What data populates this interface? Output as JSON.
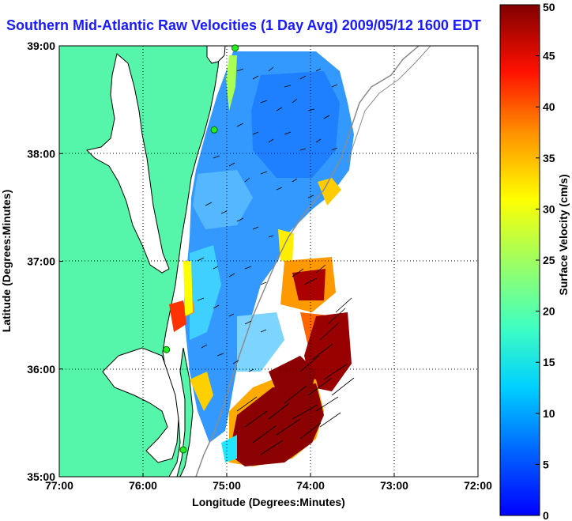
{
  "title": "Southern Mid-Atlantic Raw Velocities (1 Day Avg) 2009/05/12 1600 EDT",
  "map": {
    "xlabel": "Longitude (Degrees:Minutes)",
    "ylabel": "Latitude (Degrees:Minutes)",
    "x_ticks": [
      "77:00",
      "76:00",
      "75:00",
      "74:00",
      "73:00",
      "72:00"
    ],
    "y_ticks": [
      "39:00",
      "38:00",
      "37:00",
      "36:00",
      "35:00"
    ],
    "lon_range": [
      -77,
      -72
    ],
    "lat_range": [
      35,
      39
    ],
    "grid": "dotted",
    "land_color": "#55f5aa",
    "coast_color": "#000000",
    "bathy_color": "#8c8c8c"
  },
  "colorbar": {
    "label": "Surface Velocity (cm/s)",
    "ticks": [
      "0",
      "5",
      "10",
      "15",
      "20",
      "25",
      "30",
      "35",
      "40",
      "45",
      "50"
    ],
    "range": [
      0,
      50
    ],
    "colormap": "jet"
  },
  "stations": [
    {
      "lon": -74.9,
      "lat": 38.98
    },
    {
      "lon": -75.15,
      "lat": 38.22
    },
    {
      "lon": -75.72,
      "lat": 36.18
    },
    {
      "lon": -75.52,
      "lat": 35.25
    }
  ]
}
